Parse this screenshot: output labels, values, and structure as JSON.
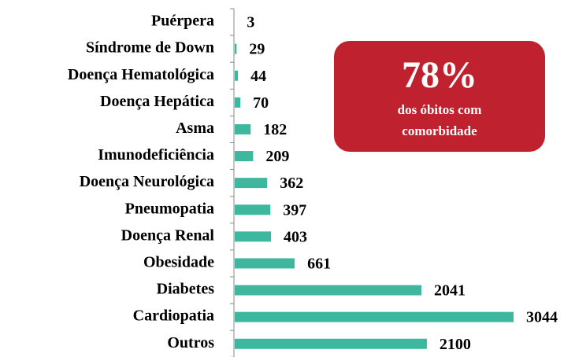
{
  "chart_data": {
    "type": "hbar",
    "categories": [
      "Puérpera",
      "Síndrome de Down",
      "Doença Hematológica",
      "Doença Hepática",
      "Asma",
      "Imunodeficiência",
      "Doença Neurológica",
      "Pneumopatia",
      "Doença Renal",
      "Obesidade",
      "Diabetes",
      "Cardiopatia",
      "Outros"
    ],
    "values": [
      3,
      29,
      44,
      70,
      182,
      209,
      362,
      397,
      403,
      661,
      2041,
      3044,
      2100
    ],
    "color": "#3db89e",
    "annotation": {
      "text": "78%",
      "subtext": [
        "dos óbitos com",
        "comorbidade"
      ],
      "color": "#c0212f"
    }
  }
}
